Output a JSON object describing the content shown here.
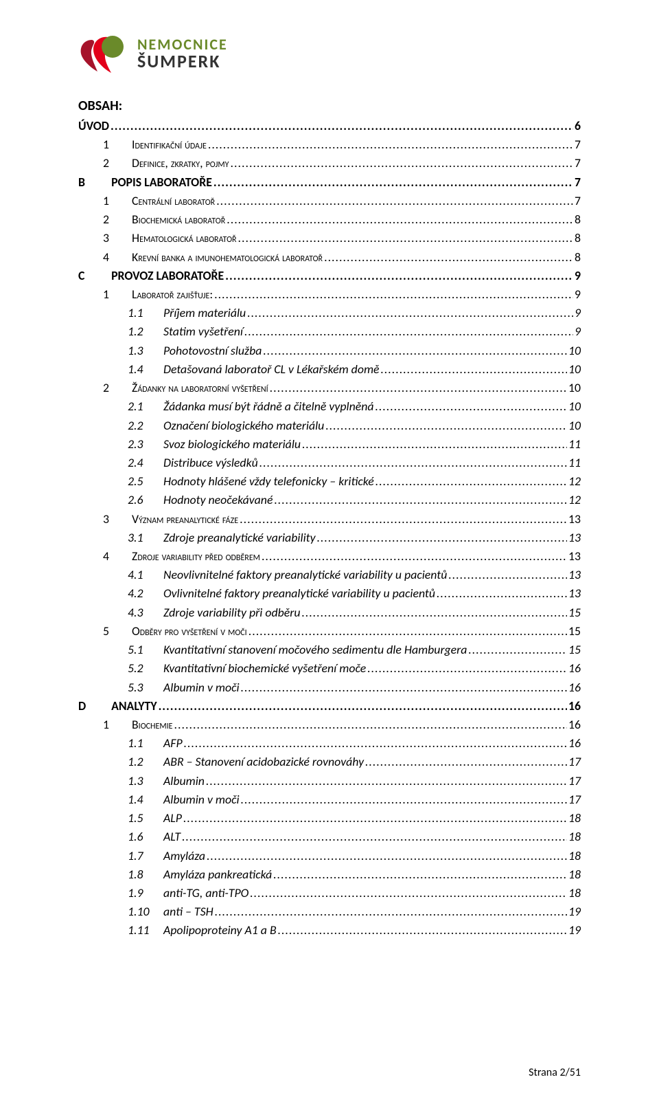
{
  "logo": {
    "line1": "NEMOCNICE",
    "line2": "ŠUMPERK",
    "accent_color": "#6a8a2a",
    "dark_color": "#333333",
    "red1": "#e2001a",
    "red2": "#a6132b"
  },
  "title": "OBSAH:",
  "footer": {
    "label": "Strana",
    "page": "2/51"
  },
  "toc": [
    {
      "lvl": 0,
      "num": "",
      "label": "ÚVOD",
      "page": "6",
      "bold": true
    },
    {
      "lvl": 1,
      "num": "1",
      "label": "Identifikační údaje",
      "page": "7",
      "sc": true
    },
    {
      "lvl": 1,
      "num": "2",
      "label": "Definice, zkratky, pojmy",
      "page": "7",
      "sc": true
    },
    {
      "lvl": 0,
      "num": "B",
      "label": "POPIS LABORATOŘE",
      "page": "7",
      "bold": true
    },
    {
      "lvl": 1,
      "num": "1",
      "label": "Centrální laboratoř",
      "page": "7",
      "sc": true
    },
    {
      "lvl": 1,
      "num": "2",
      "label": "Biochemická laboratoř",
      "page": "8",
      "sc": true
    },
    {
      "lvl": 1,
      "num": "3",
      "label": "Hematologická laboratoř",
      "page": "8",
      "sc": true
    },
    {
      "lvl": 1,
      "num": "4",
      "label": "Krevní banka a imunohematologická laboratoř",
      "page": "8",
      "sc": true
    },
    {
      "lvl": 0,
      "num": "C",
      "label": "PROVOZ LABORATOŘE",
      "page": "9",
      "bold": true
    },
    {
      "lvl": 1,
      "num": "1",
      "label": "Laboratoř zajišťuje:",
      "page": "9",
      "sc": true
    },
    {
      "lvl": 2,
      "num": "1.1",
      "label": "Příjem materiálu",
      "page": "9"
    },
    {
      "lvl": 2,
      "num": "1.2",
      "label": "Statim vyšetření",
      "page": "9"
    },
    {
      "lvl": 2,
      "num": "1.3",
      "label": "Pohotovostní služba",
      "page": "10"
    },
    {
      "lvl": 2,
      "num": "1.4",
      "label": "Detašovaná laboratoř CL v Lékařském domě",
      "page": "10"
    },
    {
      "lvl": 1,
      "num": "2",
      "label": "Žádanky na laboratorní vyšetření",
      "page": "10",
      "sc": true
    },
    {
      "lvl": 2,
      "num": "2.1",
      "label": "Žádanka musí být řádně a čitelně vyplněná",
      "page": "10"
    },
    {
      "lvl": 2,
      "num": "2.2",
      "label": "Označení biologického materiálu",
      "page": "10"
    },
    {
      "lvl": 2,
      "num": "2.3",
      "label": "Svoz biologického materiálu",
      "page": "11"
    },
    {
      "lvl": 2,
      "num": "2.4",
      "label": "Distribuce výsledků",
      "page": "11"
    },
    {
      "lvl": 2,
      "num": "2.5",
      "label": "Hodnoty hlášené vždy telefonicky – kritické",
      "page": "12"
    },
    {
      "lvl": 2,
      "num": "2.6",
      "label": "Hodnoty neočekávané",
      "page": "12"
    },
    {
      "lvl": 1,
      "num": "3",
      "label": "Význam preanalytické fáze",
      "page": "13",
      "sc": true
    },
    {
      "lvl": 2,
      "num": "3.1",
      "label": "Zdroje preanalytické variability",
      "page": "13"
    },
    {
      "lvl": 1,
      "num": "4",
      "label": "Zdroje variability před odběrem",
      "page": "13",
      "sc": true
    },
    {
      "lvl": 2,
      "num": "4.1",
      "label": "Neovlivnitelné faktory preanalytické variability u pacientů",
      "page": "13"
    },
    {
      "lvl": 2,
      "num": "4.2",
      "label": "Ovlivnitelné faktory preanalytické variability u pacientů",
      "page": "13"
    },
    {
      "lvl": 2,
      "num": "4.3",
      "label": "Zdroje variability při odběru",
      "page": "15"
    },
    {
      "lvl": 1,
      "num": "5",
      "label": "Odběry pro vyšetření v moči",
      "page": "15",
      "sc": true
    },
    {
      "lvl": 2,
      "num": "5.1",
      "label": "Kvantitativní stanovení močového sedimentu dle Hamburgera",
      "page": "15"
    },
    {
      "lvl": 2,
      "num": "5.2",
      "label": "Kvantitativní biochemické vyšetření moče",
      "page": "16"
    },
    {
      "lvl": 2,
      "num": "5.3",
      "label": "Albumin v moči",
      "page": "16"
    },
    {
      "lvl": 0,
      "num": "D",
      "label": "ANALYTY",
      "page": "16",
      "bold": true
    },
    {
      "lvl": 1,
      "num": "1",
      "label": "Biochemie",
      "page": "16",
      "sc": true
    },
    {
      "lvl": 2,
      "num": "1.1",
      "label": "AFP",
      "page": "16"
    },
    {
      "lvl": 2,
      "num": "1.2",
      "label": "ABR – Stanovení acidobazické rovnováhy",
      "page": "17"
    },
    {
      "lvl": 2,
      "num": "1.3",
      "label": "Albumin",
      "page": "17"
    },
    {
      "lvl": 2,
      "num": "1.4",
      "label": "Albumin v moči",
      "page": "17"
    },
    {
      "lvl": 2,
      "num": "1.5",
      "label": "ALP",
      "page": "18"
    },
    {
      "lvl": 2,
      "num": "1.6",
      "label": "ALT",
      "page": "18"
    },
    {
      "lvl": 2,
      "num": "1.7",
      "label": "Amyláza",
      "page": "18"
    },
    {
      "lvl": 2,
      "num": "1.8",
      "label": "Amyláza pankreatická",
      "page": "18"
    },
    {
      "lvl": 2,
      "num": "1.9",
      "label": "anti-TG, anti-TPO",
      "page": "18"
    },
    {
      "lvl": 2,
      "num": "1.10",
      "label": "anti – TSH",
      "page": "19"
    },
    {
      "lvl": 2,
      "num": "1.11",
      "label": "Apolipoproteiny A1 a B",
      "page": "19"
    }
  ]
}
